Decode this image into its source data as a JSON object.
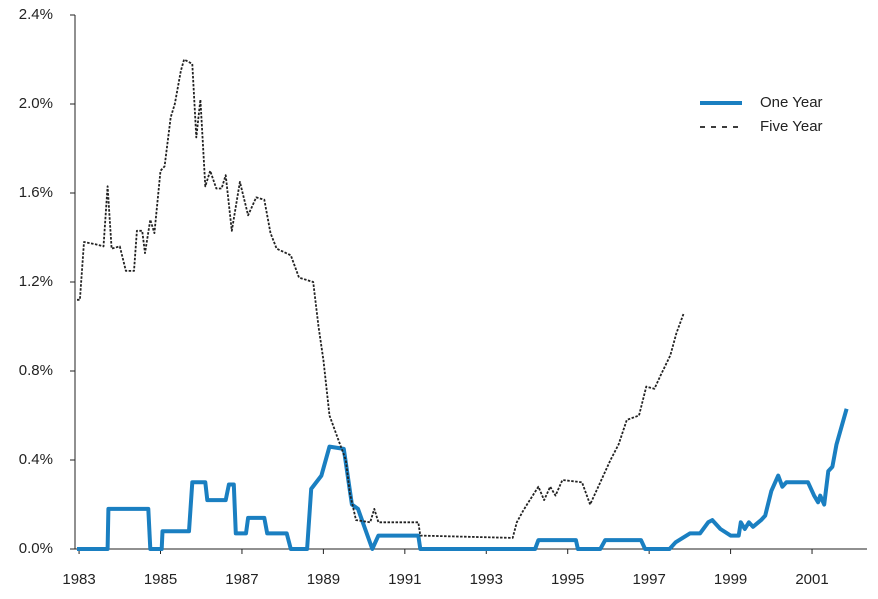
{
  "chart_data": {
    "type": "line",
    "xlim": [
      1982.9,
      2002.35
    ],
    "xticks": [
      1983,
      1985,
      1987,
      1989,
      1991,
      1993,
      1995,
      1997,
      1999,
      2001
    ],
    "ylim": [
      0,
      2.4
    ],
    "yticks": [
      {
        "value": 0,
        "label": "0.0%"
      },
      {
        "value": 0.4,
        "label": "0.4%"
      },
      {
        "value": 0.8,
        "label": "0.8%"
      },
      {
        "value": 1.2,
        "label": "1.2%"
      },
      {
        "value": 1.6,
        "label": "1.6%"
      },
      {
        "value": 2.0,
        "label": "2.0%"
      },
      {
        "value": 2.4,
        "label": "2.4%"
      }
    ],
    "legend": "upper right",
    "series": [
      {
        "name": "One Year",
        "color": "#1a7fc1",
        "style": "solid",
        "x": [
          1982.95,
          1983.7,
          1983.72,
          1984.7,
          1984.75,
          1985.03,
          1985.05,
          1985.7,
          1985.78,
          1986.1,
          1986.15,
          1986.6,
          1986.68,
          1986.8,
          1986.85,
          1987.1,
          1987.15,
          1987.55,
          1987.62,
          1988.1,
          1988.2,
          1988.6,
          1988.7,
          1988.95,
          1989.15,
          1989.5,
          1989.7,
          1989.85,
          1990.2,
          1990.35,
          1991.33,
          1991.38,
          1994.2,
          1994.28,
          1995.2,
          1995.25,
          1995.8,
          1995.92,
          1996.8,
          1996.9,
          1997.5,
          1997.65,
          1998.0,
          1998.25,
          1998.45,
          1998.55,
          1998.75,
          1999.0,
          1999.2,
          1999.25,
          1999.35,
          1999.45,
          1999.55,
          1999.75,
          1999.85,
          2000.0,
          2000.17,
          2000.27,
          2000.37,
          2000.9,
          2001.05,
          2001.15,
          2001.2,
          2001.3,
          2001.4,
          2001.5,
          2001.6,
          2001.85
        ],
        "values": [
          0,
          0,
          0.18,
          0.18,
          0,
          0,
          0.08,
          0.08,
          0.3,
          0.3,
          0.22,
          0.22,
          0.29,
          0.29,
          0.07,
          0.07,
          0.14,
          0.14,
          0.07,
          0.07,
          0,
          0,
          0.27,
          0.33,
          0.46,
          0.45,
          0.2,
          0.18,
          0,
          0.06,
          0.06,
          0,
          0,
          0.04,
          0.04,
          0,
          0,
          0.04,
          0.04,
          0,
          0,
          0.03,
          0.07,
          0.07,
          0.12,
          0.13,
          0.09,
          0.06,
          0.06,
          0.12,
          0.09,
          0.12,
          0.1,
          0.13,
          0.15,
          0.26,
          0.33,
          0.28,
          0.3,
          0.3,
          0.24,
          0.21,
          0.24,
          0.2,
          0.35,
          0.37,
          0.47,
          0.63
        ]
      },
      {
        "name": "Five Year",
        "color": "#222222",
        "style": "dotted",
        "x": [
          1982.95,
          1983.02,
          1983.12,
          1983.4,
          1983.6,
          1983.7,
          1983.8,
          1984.0,
          1984.15,
          1984.35,
          1984.42,
          1984.55,
          1984.62,
          1984.75,
          1984.85,
          1985.0,
          1985.1,
          1985.25,
          1985.35,
          1985.5,
          1985.58,
          1985.78,
          1985.88,
          1985.98,
          1986.1,
          1986.22,
          1986.37,
          1986.5,
          1986.6,
          1986.75,
          1986.95,
          1987.15,
          1987.35,
          1987.55,
          1987.7,
          1987.85,
          1988.2,
          1988.4,
          1988.75,
          1988.88,
          1989.0,
          1989.15,
          1989.35,
          1989.55,
          1989.65,
          1989.8,
          1990.15,
          1990.25,
          1990.35,
          1991.33,
          1991.38,
          1993.65,
          1993.75,
          1993.9,
          1994.0,
          1994.28,
          1994.42,
          1994.57,
          1994.7,
          1994.87,
          1995.35,
          1995.55,
          1995.8,
          1996.05,
          1996.25,
          1996.45,
          1996.75,
          1996.93,
          1997.13,
          1997.28,
          1997.52,
          1997.67,
          1997.85
        ],
        "values": [
          1.12,
          1.12,
          1.38,
          1.37,
          1.36,
          1.63,
          1.35,
          1.36,
          1.25,
          1.25,
          1.43,
          1.43,
          1.33,
          1.48,
          1.42,
          1.7,
          1.72,
          1.94,
          2.0,
          2.15,
          2.2,
          2.18,
          1.85,
          2.02,
          1.63,
          1.7,
          1.62,
          1.62,
          1.68,
          1.43,
          1.65,
          1.5,
          1.58,
          1.57,
          1.42,
          1.35,
          1.32,
          1.22,
          1.2,
          1.0,
          0.85,
          0.6,
          0.5,
          0.4,
          0.25,
          0.13,
          0.12,
          0.18,
          0.12,
          0.12,
          0.06,
          0.05,
          0.12,
          0.17,
          0.2,
          0.28,
          0.22,
          0.28,
          0.24,
          0.31,
          0.3,
          0.2,
          0.3,
          0.4,
          0.47,
          0.58,
          0.6,
          0.73,
          0.72,
          0.78,
          0.87,
          0.97,
          1.06
        ]
      }
    ]
  }
}
